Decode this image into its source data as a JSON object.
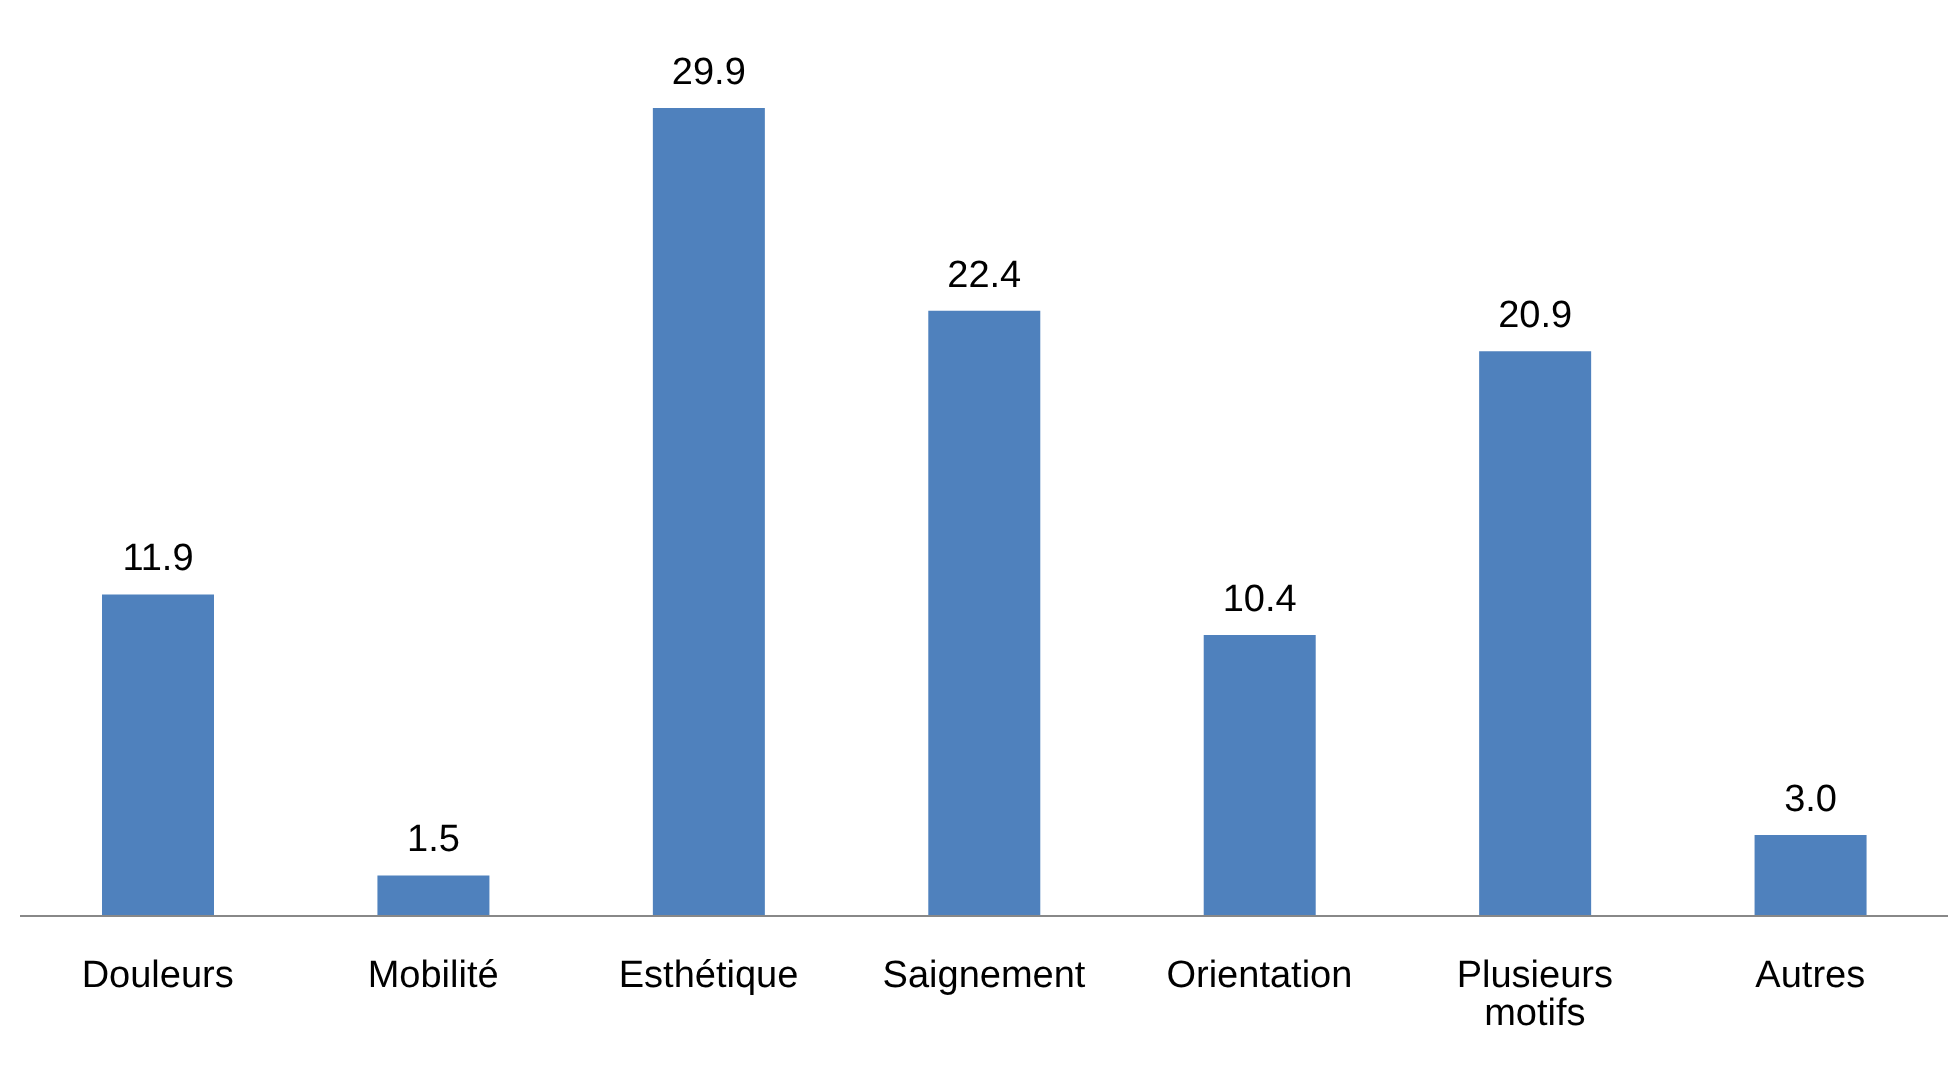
{
  "chart_data": {
    "type": "bar",
    "categories": [
      "Douleurs",
      "Mobilité",
      "Esthétique",
      "Saignement",
      "Orientation",
      "Plusieurs motifs",
      "Autres"
    ],
    "values": [
      11.9,
      1.5,
      29.9,
      22.4,
      10.4,
      20.9,
      3.0
    ],
    "color": "#4f81bd",
    "value_labels": [
      "11.9",
      "1.5",
      "29.9",
      "22.4",
      "10.4",
      "20.9",
      "3.0"
    ]
  }
}
